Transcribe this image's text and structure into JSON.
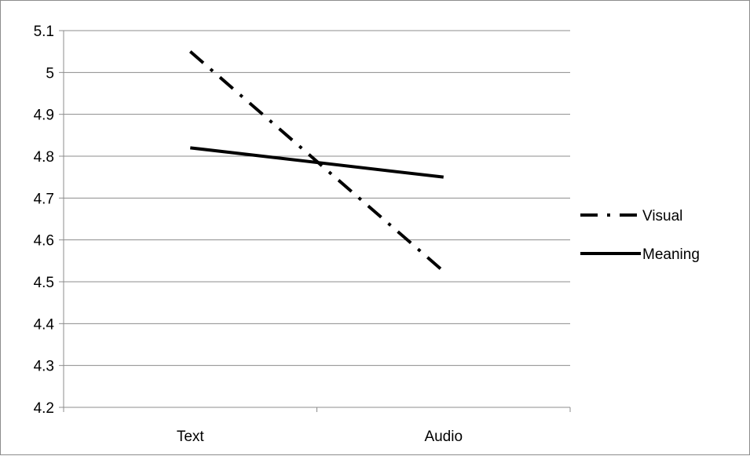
{
  "chart_data": {
    "type": "line",
    "categories": [
      "Text",
      "Audio"
    ],
    "ylim": [
      4.2,
      5.1
    ],
    "yticks": [
      "4.2",
      "4.3",
      "4.4",
      "4.5",
      "4.6",
      "4.7",
      "4.8",
      "4.9",
      "5",
      "5.1"
    ],
    "grid": true,
    "legend_position": "right",
    "series": [
      {
        "name": "Visual",
        "values": [
          5.05,
          4.525
        ],
        "line_style": "dash-dot",
        "color": "#000000"
      },
      {
        "name": "Meaning",
        "values": [
          4.82,
          4.75
        ],
        "line_style": "solid",
        "color": "#000000"
      }
    ],
    "title": "",
    "xlabel": "",
    "ylabel": ""
  }
}
